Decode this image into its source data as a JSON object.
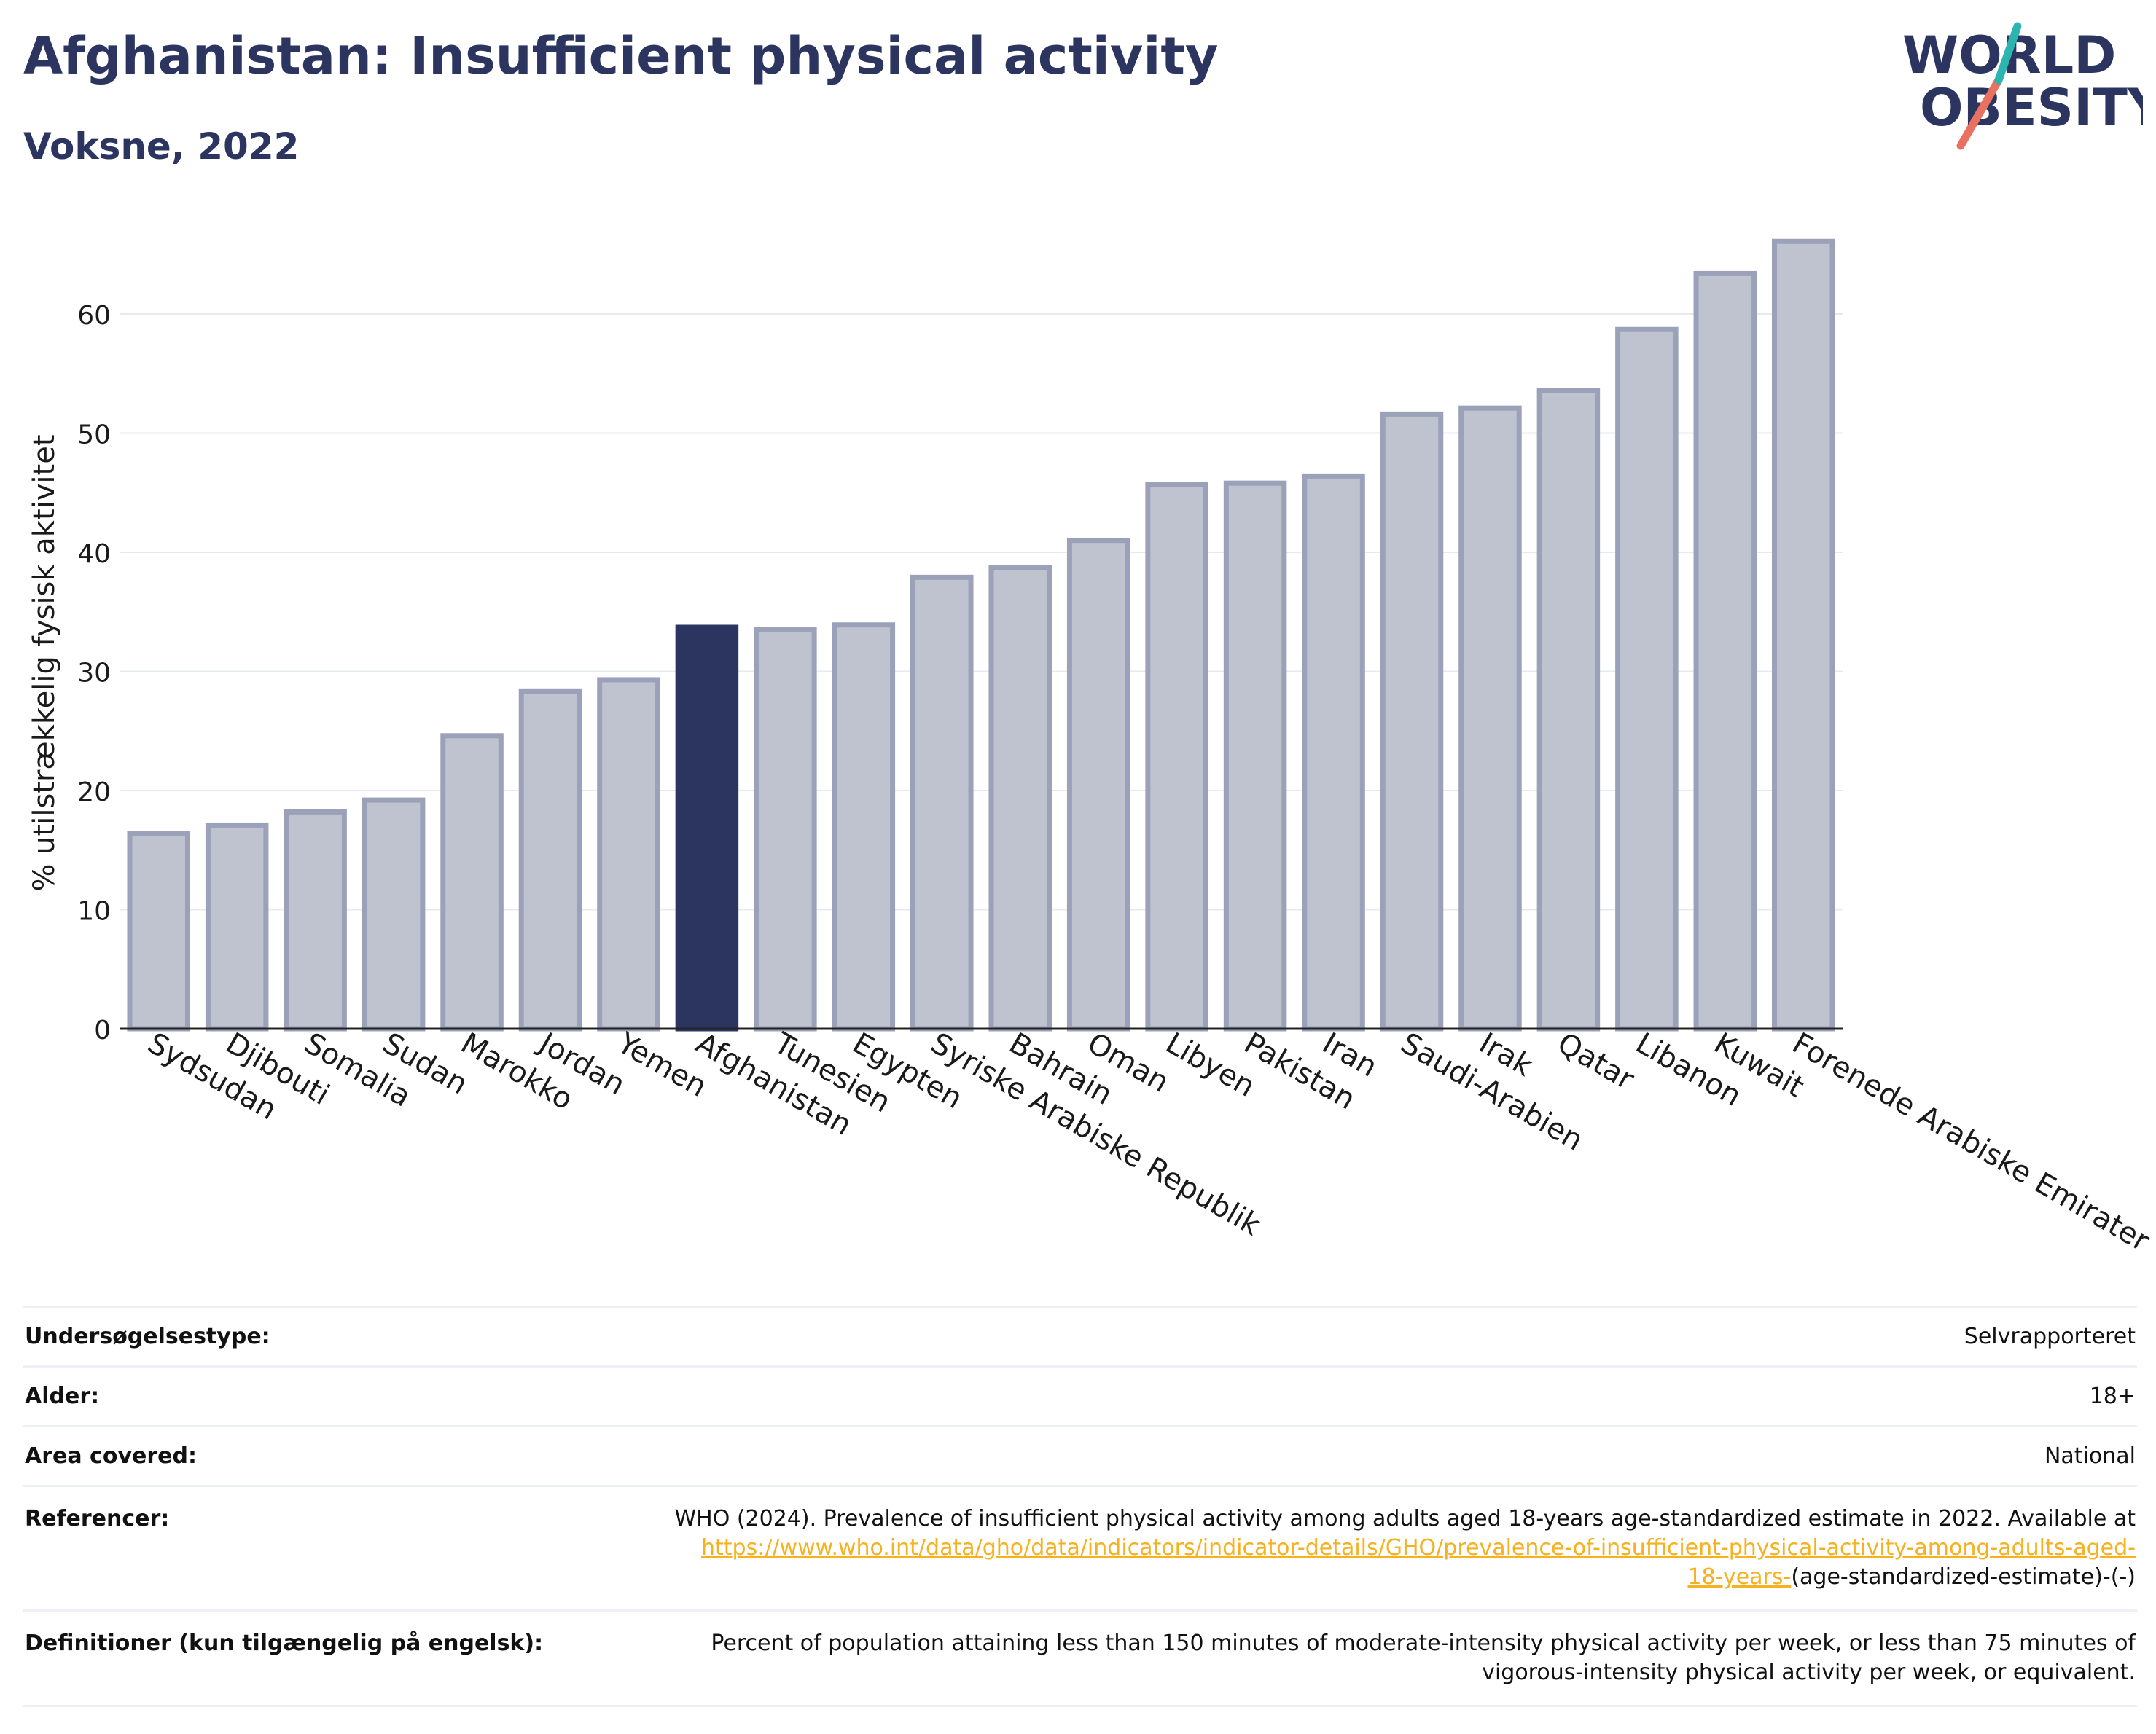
{
  "header": {
    "title": "Afghanistan: Insufficient physical activity",
    "subtitle": "Voksne, 2022",
    "logo_line1": "WORLD",
    "logo_line2": "OBESITY"
  },
  "colors": {
    "navy": "#2b3560",
    "bar_fill": "#bfc3d0",
    "bar_stroke": "#9aa1b8",
    "logo_teal": "#2cb5b0",
    "logo_coral": "#e8715f",
    "link": "#f5b120"
  },
  "chart_data": {
    "type": "bar",
    "title": "Afghanistan: Insufficient physical activity",
    "subtitle": "Voksne, 2022",
    "ylabel": "% utilstrækkelig fysisk aktivitet",
    "xlabel": "",
    "ylim": [
      0,
      67.5
    ],
    "yticks": [
      0,
      10,
      20,
      30,
      40,
      50,
      60
    ],
    "grid": true,
    "highlight": "Afghanistan",
    "categories": [
      "Sydsudan",
      "Djibouti",
      "Somalia",
      "Sudan",
      "Marokko",
      "Jordan",
      "Yemen",
      "Afghanistan",
      "Tunesien",
      "Egypten",
      "Syriske Arabiske Republik",
      "Bahrain",
      "Oman",
      "Libyen",
      "Pakistan",
      "Iran",
      "Saudi-Arabien",
      "Irak",
      "Qatar",
      "Libanon",
      "Kuwait",
      "Forenede Arabiske Emirater"
    ],
    "values": [
      16.4,
      17.1,
      18.2,
      19.2,
      24.6,
      28.3,
      29.3,
      33.7,
      33.5,
      33.9,
      37.9,
      38.7,
      41.0,
      45.7,
      45.8,
      46.4,
      51.6,
      52.1,
      53.6,
      58.7,
      63.4,
      66.1
    ]
  },
  "info": {
    "survey_type": {
      "label": "Undersøgelsestype:",
      "value": "Selvrapporteret"
    },
    "age": {
      "label": "Alder:",
      "value": "18+"
    },
    "area": {
      "label": "Area covered:",
      "value": "National"
    },
    "references": {
      "label": "Referencer:",
      "text": "WHO (2024). Prevalence of insufficient physical activity among adults aged 18-years age-standardized estimate in 2022. Available at",
      "link_line1": "https://www.who.int/data/gho/data/indicators/indicator-details/GHO/prevalence-of-insufficient-physical-activity-among-adults-aged-",
      "link_line2": "18-years-",
      "suffix": "(age-standardized-estimate)-(-)"
    },
    "definitions": {
      "label": "Definitioner (kun tilgængelig på engelsk):",
      "line1": "Percent of population attaining less than 150 minutes of moderate-intensity physical activity per week, or less than 75 minutes of",
      "line2": "vigorous-intensity physical activity per week, or equivalent."
    }
  }
}
